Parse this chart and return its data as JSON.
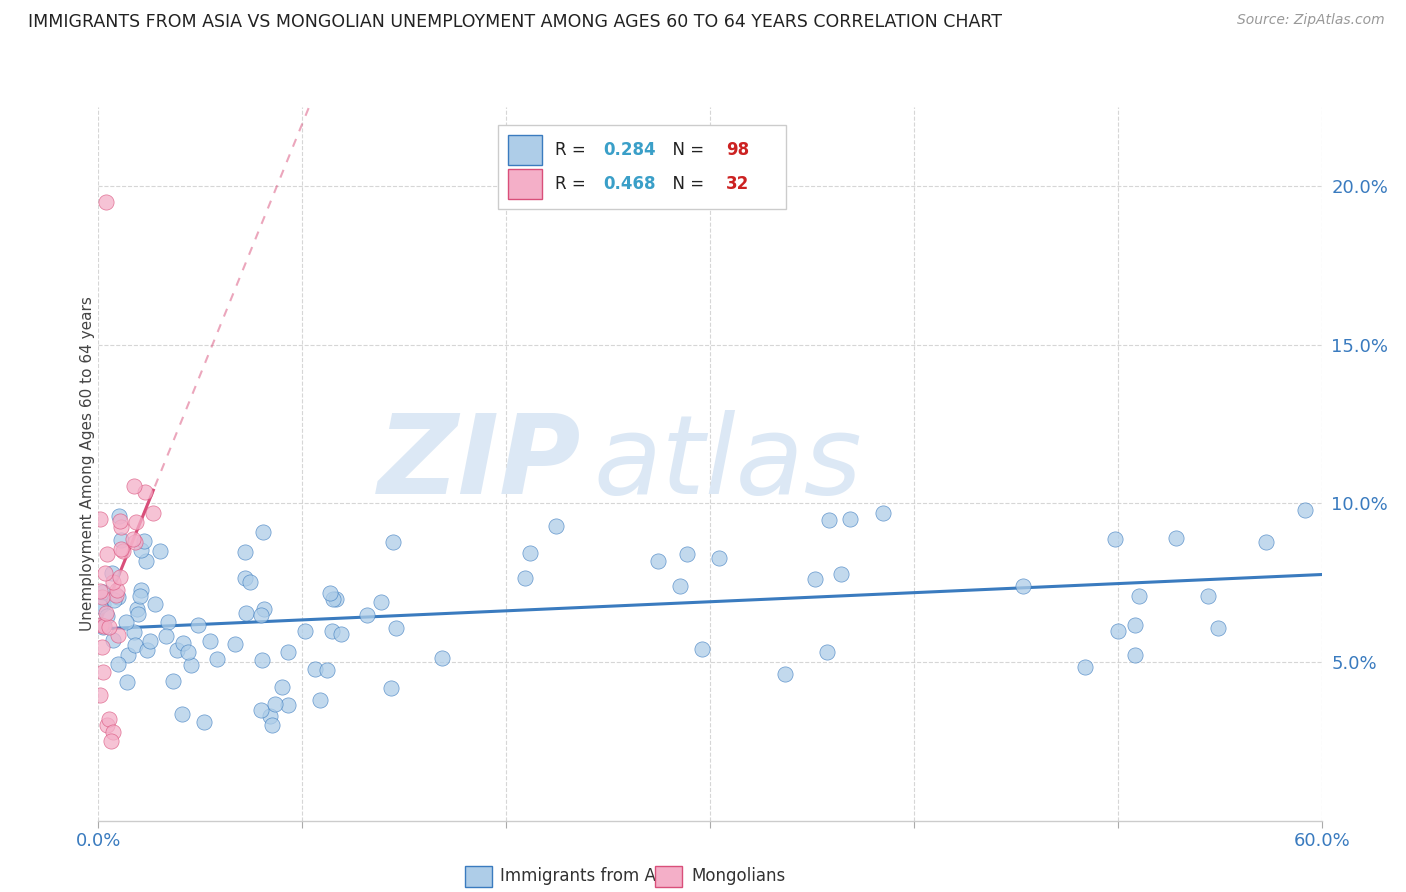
{
  "title": "IMMIGRANTS FROM ASIA VS MONGOLIAN UNEMPLOYMENT AMONG AGES 60 TO 64 YEARS CORRELATION CHART",
  "source": "Source: ZipAtlas.com",
  "ylabel": "Unemployment Among Ages 60 to 64 years",
  "yticks": [
    0.05,
    0.1,
    0.15,
    0.2
  ],
  "ytick_labels": [
    "5.0%",
    "10.0%",
    "15.0%",
    "20.0%"
  ],
  "xlim": [
    0.0,
    0.6
  ],
  "ylim": [
    0.0,
    0.225
  ],
  "scatter_blue_color": "#aecde8",
  "scatter_pink_color": "#f4afc8",
  "line_blue_color": "#3a7bbf",
  "line_pink_color": "#d94f7a",
  "legend1_color": "#aecde8",
  "legend2_color": "#f4afc8",
  "legend1_border": "#3a7bbf",
  "legend2_border": "#d94f7a",
  "watermark_zip": "ZIP",
  "watermark_atlas": "atlas",
  "watermark_color": "#dce8f5",
  "cyan_color": "#3a9fc8",
  "red_color": "#cc2222",
  "grid_color": "#cccccc",
  "bottom_label1": "Immigrants from Asia",
  "bottom_label2": "Mongolians"
}
